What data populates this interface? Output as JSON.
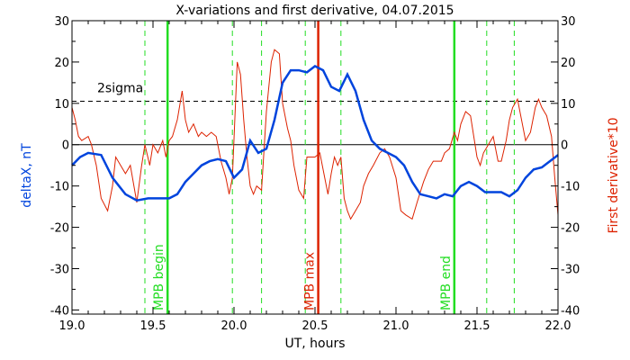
{
  "chart_data": {
    "type": "line",
    "title": "X-variations and first derivative, 04.07.2015",
    "xlabel": "UT, hours",
    "ylabel_left": "deltaX, nT",
    "ylabel_right": "First derivative*10",
    "xlim": [
      19.0,
      22.0
    ],
    "ylim": [
      -41,
      30
    ],
    "x_ticks": [
      "19.0",
      "19.5",
      "20.0",
      "20.5",
      "21.0",
      "21.5",
      "22.0"
    ],
    "y_ticks": [
      "30",
      "20",
      "10",
      "0",
      "-10",
      "-20",
      "-30",
      "-40"
    ],
    "threshold": {
      "value": 10.5,
      "label": "2sigma"
    },
    "zero_line": 0,
    "series": [
      {
        "name": "deltaX, nT",
        "color": "#0044dd",
        "x": [
          19.0,
          19.05,
          19.1,
          19.18,
          19.25,
          19.33,
          19.4,
          19.47,
          19.55,
          19.6,
          19.65,
          19.7,
          19.75,
          19.8,
          19.85,
          19.9,
          19.95,
          20.0,
          20.05,
          20.1,
          20.15,
          20.2,
          20.25,
          20.3,
          20.35,
          20.4,
          20.45,
          20.5,
          20.55,
          20.6,
          20.65,
          20.7,
          20.75,
          20.8,
          20.85,
          20.9,
          20.95,
          21.0,
          21.05,
          21.1,
          21.15,
          21.2,
          21.25,
          21.3,
          21.35,
          21.4,
          21.45,
          21.5,
          21.55,
          21.6,
          21.65,
          21.7,
          21.75,
          21.8,
          21.85,
          21.9,
          21.95,
          22.0
        ],
        "values": [
          -5,
          -3,
          -2,
          -2.5,
          -8,
          -12,
          -13.5,
          -13,
          -13,
          -13,
          -12,
          -9,
          -7,
          -5,
          -4,
          -3.5,
          -4,
          -8,
          -6,
          1,
          -2,
          -1,
          6,
          15,
          18,
          18,
          17.5,
          19,
          18,
          14,
          13,
          17,
          13,
          6,
          1,
          -1,
          -2,
          -3,
          -5,
          -9,
          -12,
          -12.5,
          -13,
          -12,
          -12.5,
          -10,
          -9,
          -10,
          -11.5,
          -11.5,
          -11.5,
          -12.5,
          -11,
          -8,
          -6,
          -5.5,
          -4,
          -2.5
        ]
      },
      {
        "name": "First derivative*10",
        "color": "#dd2200",
        "x": [
          19.0,
          19.02,
          19.04,
          19.06,
          19.1,
          19.12,
          19.15,
          19.18,
          19.22,
          19.25,
          19.27,
          19.3,
          19.33,
          19.36,
          19.4,
          19.43,
          19.45,
          19.48,
          19.5,
          19.53,
          19.56,
          19.58,
          19.6,
          19.62,
          19.65,
          19.68,
          19.7,
          19.72,
          19.75,
          19.78,
          19.8,
          19.83,
          19.86,
          19.89,
          19.92,
          19.95,
          19.97,
          19.99,
          20.02,
          20.04,
          20.06,
          20.08,
          20.1,
          20.12,
          20.14,
          20.17,
          20.2,
          20.23,
          20.25,
          20.28,
          20.3,
          20.33,
          20.35,
          20.37,
          20.4,
          20.43,
          20.45,
          20.47,
          20.5,
          20.53,
          20.56,
          20.58,
          20.6,
          20.62,
          20.64,
          20.66,
          20.68,
          20.7,
          20.72,
          20.75,
          20.78,
          20.8,
          20.83,
          20.86,
          20.9,
          20.93,
          20.96,
          21.0,
          21.03,
          21.06,
          21.1,
          21.13,
          21.17,
          21.2,
          21.23,
          21.26,
          21.28,
          21.3,
          21.33,
          21.36,
          21.38,
          21.4,
          21.43,
          21.46,
          21.48,
          21.5,
          21.52,
          21.54,
          21.57,
          21.6,
          21.63,
          21.65,
          21.68,
          21.7,
          21.72,
          21.75,
          21.78,
          21.8,
          21.83,
          21.86,
          21.88,
          21.9,
          21.93,
          21.96,
          21.98,
          22.0
        ],
        "values": [
          9,
          6,
          2,
          1,
          2,
          0,
          -5,
          -13,
          -16,
          -10,
          -3,
          -5,
          -7,
          -5,
          -14,
          -5,
          0,
          -5,
          0,
          -2,
          1,
          -3,
          1,
          2,
          6,
          13,
          6,
          3,
          5,
          2,
          3,
          2,
          3,
          2,
          -4,
          -8,
          -12,
          -8,
          20,
          17,
          6,
          -3,
          -10,
          -12,
          -10,
          -11,
          8,
          20,
          23,
          22,
          10,
          4,
          1,
          -5,
          -11,
          -13,
          -3,
          -3,
          -3,
          -2,
          -8,
          -12,
          -7,
          -3,
          -5,
          -3,
          -13,
          -16,
          -18,
          -16,
          -14,
          -10,
          -7,
          -5,
          -2,
          -1,
          -3,
          -8,
          -16,
          -17,
          -18,
          -14,
          -9,
          -6,
          -4,
          -4,
          -4,
          -2,
          -1,
          3,
          1,
          5,
          8,
          7,
          2,
          -3,
          -5,
          -2,
          0,
          2,
          -4,
          -4,
          1,
          6,
          9,
          11,
          5,
          1,
          3,
          9,
          11,
          9,
          7,
          2,
          -8,
          -17
        ]
      }
    ],
    "markers": [
      {
        "x": 19.45,
        "style": "dashed",
        "color": "#22dd22",
        "label": ""
      },
      {
        "x": 19.59,
        "style": "solid",
        "color": "#22dd22",
        "label": "MPB begin"
      },
      {
        "x": 19.99,
        "style": "dashed",
        "color": "#22dd22",
        "label": ""
      },
      {
        "x": 20.17,
        "style": "dashed",
        "color": "#22dd22",
        "label": ""
      },
      {
        "x": 20.44,
        "style": "dashed",
        "color": "#22dd22",
        "label": ""
      },
      {
        "x": 20.52,
        "style": "solid",
        "color": "#dd2200",
        "label": "MPB max"
      },
      {
        "x": 20.66,
        "style": "dashed",
        "color": "#22dd22",
        "label": ""
      },
      {
        "x": 21.36,
        "style": "solid",
        "color": "#22dd22",
        "label": "MPB end"
      },
      {
        "x": 21.56,
        "style": "dashed",
        "color": "#22dd22",
        "label": ""
      },
      {
        "x": 21.73,
        "style": "dashed",
        "color": "#22dd22",
        "label": ""
      }
    ]
  }
}
